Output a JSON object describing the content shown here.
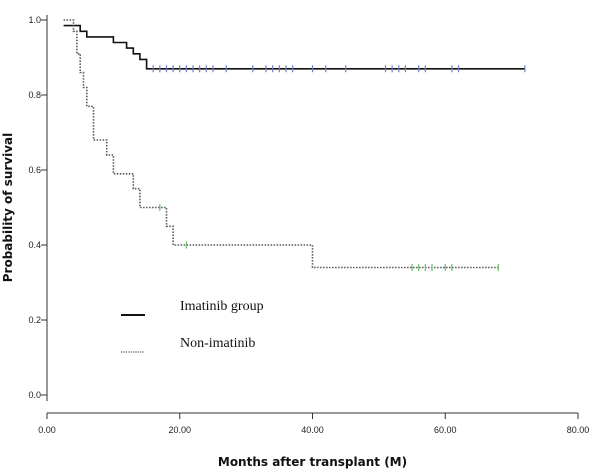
{
  "chart_data": {
    "type": "line",
    "title": "",
    "xlabel": "Months after transplant (M)",
    "ylabel": "Probability of survival",
    "xlim": [
      0,
      80
    ],
    "ylim": [
      0,
      1.0
    ],
    "x_ticks": [
      0,
      20,
      40,
      60,
      80
    ],
    "x_tick_labels": [
      "0.00",
      "20.00",
      "40.00",
      "60.00",
      "80.00"
    ],
    "y_ticks": [
      0,
      0.2,
      0.4,
      0.6,
      0.8,
      1.0
    ],
    "y_tick_labels": [
      "0.0",
      "0.2",
      "0.4",
      "0.6",
      "0.8",
      "1.0"
    ],
    "grid": false,
    "legend_position": "bottom-left",
    "series": [
      {
        "name": "Imatinib group",
        "line_style": "solid",
        "color": "#111111",
        "censor_color": "#6f7fbf",
        "steps": [
          [
            2.5,
            0.985
          ],
          [
            5,
            0.97
          ],
          [
            6,
            0.955
          ],
          [
            10,
            0.94
          ],
          [
            12,
            0.925
          ],
          [
            13,
            0.91
          ],
          [
            14,
            0.895
          ],
          [
            15,
            0.87
          ],
          [
            72,
            0.87
          ]
        ],
        "censored_x": [
          16,
          17,
          18,
          19,
          20,
          21,
          22,
          23,
          24,
          25,
          27,
          31,
          33,
          34,
          35,
          36,
          37,
          40,
          42,
          45,
          51,
          52,
          53,
          54,
          56,
          57,
          61,
          62,
          72
        ]
      },
      {
        "name": "Non-imatinib",
        "line_style": "dotted",
        "color": "#555555",
        "censor_color": "#6cbf6c",
        "steps": [
          [
            2.5,
            1.0
          ],
          [
            4,
            0.97
          ],
          [
            4.5,
            0.91
          ],
          [
            5,
            0.86
          ],
          [
            5.5,
            0.82
          ],
          [
            6,
            0.77
          ],
          [
            7,
            0.68
          ],
          [
            9,
            0.64
          ],
          [
            10,
            0.59
          ],
          [
            13,
            0.55
          ],
          [
            14,
            0.5
          ],
          [
            17,
            0.5
          ],
          [
            18,
            0.45
          ],
          [
            19,
            0.4
          ],
          [
            40,
            0.34
          ],
          [
            68,
            0.34
          ]
        ],
        "censored_x": [
          17,
          21,
          55,
          56,
          57,
          58,
          60,
          61,
          68
        ]
      }
    ]
  }
}
